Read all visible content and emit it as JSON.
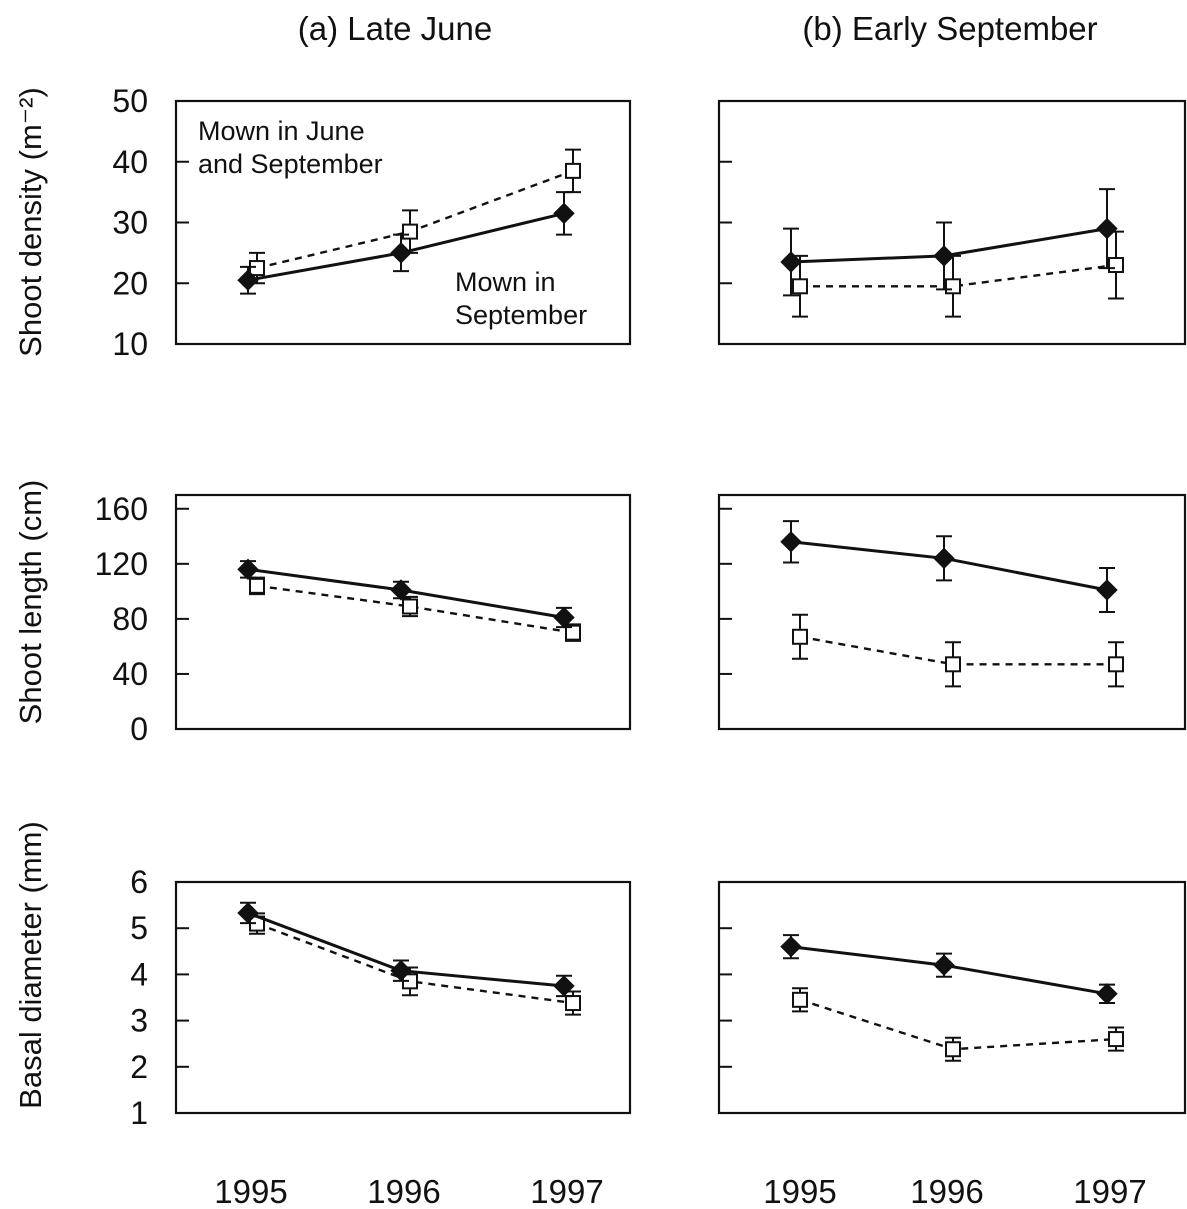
{
  "colors": {
    "ink": "#111111",
    "background": "#ffffff",
    "open_marker_fill": "#ffffff"
  },
  "columns": [
    {
      "title": "(a) Late June"
    },
    {
      "title": "(b) Early September"
    }
  ],
  "rows": [
    {
      "ylabel": "Shoot density (m⁻²)"
    },
    {
      "ylabel": "Shoot length (cm)"
    },
    {
      "ylabel": "Basal diameter (mm)"
    }
  ],
  "annotations": {
    "june_sept": [
      "Mown in June",
      "and September"
    ],
    "sept": [
      "Mown in",
      "September"
    ]
  },
  "chart_data": [
    {
      "type": "line",
      "panel": "row1-col1",
      "title": "(a) Late June",
      "ylabel": "Shoot density (m⁻²)",
      "x": [
        1995,
        1996,
        1997
      ],
      "ylim": [
        10,
        50
      ],
      "yticks": [
        10,
        20,
        30,
        40,
        50
      ],
      "show_ytick_labels": true,
      "show_xtick_labels": false,
      "series": [
        {
          "name": "Mown in September",
          "style": "solid-filled-diamond",
          "values": [
            20.5,
            25,
            31.5
          ],
          "err": [
            2.2,
            3,
            3.5
          ]
        },
        {
          "name": "Mown in June and September",
          "style": "dashed-open-square",
          "values": [
            22.5,
            28.5,
            38.5
          ],
          "err": [
            2.5,
            3.5,
            3.5
          ]
        }
      ]
    },
    {
      "type": "line",
      "panel": "row1-col2",
      "x": [
        1995,
        1996,
        1997
      ],
      "ylim": [
        10,
        50
      ],
      "yticks": [
        10,
        20,
        30,
        40,
        50
      ],
      "show_ytick_labels": false,
      "show_xtick_labels": false,
      "series": [
        {
          "style": "solid-filled-diamond",
          "values": [
            23.5,
            24.5,
            29
          ],
          "err": [
            5.5,
            5.5,
            6.5
          ]
        },
        {
          "style": "dashed-open-square",
          "values": [
            19.5,
            19.5,
            23
          ],
          "err": [
            5,
            5,
            5.5
          ]
        }
      ]
    },
    {
      "type": "line",
      "panel": "row2-col1",
      "ylabel": "Shoot length (cm)",
      "x": [
        1995,
        1996,
        1997
      ],
      "ylim": [
        0,
        170
      ],
      "yticks": [
        0,
        40,
        80,
        120,
        160
      ],
      "show_ytick_labels": true,
      "show_xtick_labels": false,
      "series": [
        {
          "style": "solid-filled-diamond",
          "values": [
            116,
            101,
            81
          ],
          "err": [
            6,
            6,
            7
          ]
        },
        {
          "style": "dashed-open-square",
          "values": [
            104,
            89,
            70
          ],
          "err": [
            6,
            7,
            6
          ]
        }
      ]
    },
    {
      "type": "line",
      "panel": "row2-col2",
      "x": [
        1995,
        1996,
        1997
      ],
      "ylim": [
        0,
        170
      ],
      "yticks": [
        0,
        40,
        80,
        120,
        160
      ],
      "show_ytick_labels": false,
      "show_xtick_labels": false,
      "series": [
        {
          "style": "solid-filled-diamond",
          "values": [
            136,
            124,
            101
          ],
          "err": [
            15,
            16,
            16
          ]
        },
        {
          "style": "dashed-open-square",
          "values": [
            67,
            47,
            47
          ],
          "err": [
            16,
            16,
            16
          ]
        }
      ]
    },
    {
      "type": "line",
      "panel": "row3-col1",
      "ylabel": "Basal diameter (mm)",
      "x": [
        1995,
        1996,
        1997
      ],
      "xtick_labels": [
        "1995",
        "1996",
        "1997"
      ],
      "ylim": [
        1,
        6
      ],
      "yticks": [
        1,
        2,
        3,
        4,
        5,
        6
      ],
      "show_ytick_labels": true,
      "show_xtick_labels": true,
      "series": [
        {
          "style": "solid-filled-diamond",
          "values": [
            5.33,
            4.08,
            3.75
          ],
          "err": [
            0.22,
            0.22,
            0.22
          ]
        },
        {
          "style": "dashed-open-square",
          "values": [
            5.1,
            3.85,
            3.38
          ],
          "err": [
            0.22,
            0.3,
            0.25
          ]
        }
      ]
    },
    {
      "type": "line",
      "panel": "row3-col2",
      "x": [
        1995,
        1996,
        1997
      ],
      "xtick_labels": [
        "1995",
        "1996",
        "1997"
      ],
      "ylim": [
        1,
        6
      ],
      "yticks": [
        1,
        2,
        3,
        4,
        5,
        6
      ],
      "show_ytick_labels": false,
      "show_xtick_labels": true,
      "series": [
        {
          "style": "solid-filled-diamond",
          "values": [
            4.6,
            4.2,
            3.58
          ],
          "err": [
            0.25,
            0.25,
            0.2
          ]
        },
        {
          "style": "dashed-open-square",
          "values": [
            3.45,
            2.38,
            2.6
          ],
          "err": [
            0.25,
            0.25,
            0.25
          ]
        }
      ]
    }
  ]
}
